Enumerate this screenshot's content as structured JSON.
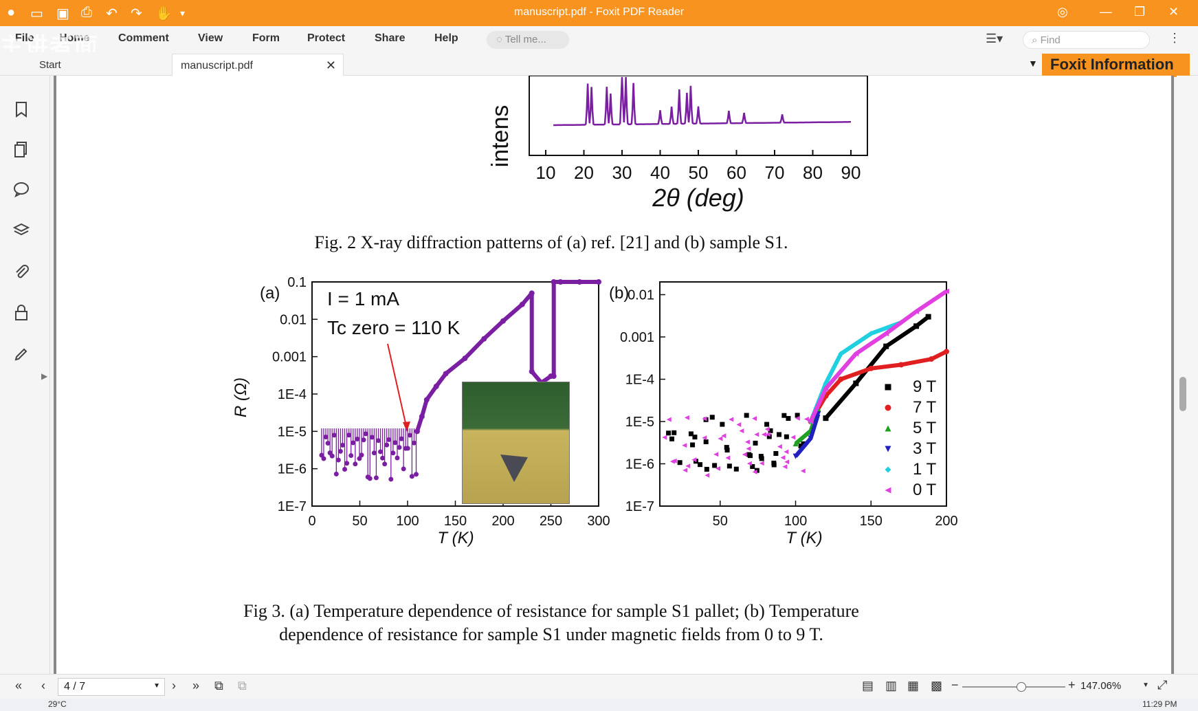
{
  "window": {
    "title": "manuscript.pdf - Foxit PDF Reader",
    "accent": "#f7931e"
  },
  "menu": {
    "items": [
      "File",
      "Home",
      "Comment",
      "View",
      "Form",
      "Protect",
      "Share",
      "Help"
    ],
    "tell_me_placeholder": "Tell me...",
    "find_placeholder": "Find"
  },
  "tabs": {
    "start": "Start",
    "document": "manuscript.pdf",
    "info": "Foxit Information"
  },
  "status": {
    "page": "4 / 7",
    "zoom": "147.06%"
  },
  "taskbar": {
    "temp": "29°C",
    "time": "11:29 PM"
  },
  "watermark": "主讲者面",
  "fig2": {
    "ylabel": "intens",
    "xticks": [
      "10",
      "20",
      "30",
      "40",
      "50",
      "60",
      "70",
      "80",
      "90"
    ],
    "xlabel": "2θ (deg)",
    "caption": "Fig. 2 X-ray diffraction patterns of (a) ref. [21] and (b) sample S1."
  },
  "fig3": {
    "caption_line1": "Fig 3. (a) Temperature dependence of resistance for sample S1 pallet; (b) Temperature",
    "caption_line2": "dependence of resistance for sample S1 under magnetic fields from 0 to 9 T."
  },
  "chart_data": [
    {
      "type": "line",
      "panel": "(a)",
      "title": "",
      "annotation_current": "I = 1 mA",
      "annotation_tc": "Tc zero = 110 K",
      "xlabel": "T (K)",
      "ylabel": "R (Ω)",
      "xlim": [
        0,
        300
      ],
      "yscale": "log",
      "ylim": [
        1e-07,
        0.1
      ],
      "xticks": [
        "0",
        "50",
        "100",
        "150",
        "200",
        "250",
        "300"
      ],
      "yticks": [
        "0.1",
        "0.01",
        "0.001",
        "1E-4",
        "1E-5",
        "1E-6",
        "1E-7"
      ],
      "series": [
        {
          "name": "R(T)",
          "color": "#7b1fa2",
          "x": [
            110,
            115,
            120,
            130,
            140,
            160,
            180,
            200,
            220,
            230,
            230,
            240,
            250,
            253,
            253,
            260,
            280,
            300
          ],
          "y": [
            1e-05,
            2.5e-05,
            7e-05,
            0.00016,
            0.00035,
            0.0009,
            0.003,
            0.009,
            0.025,
            0.05,
            0.0004,
            0.0002,
            0.0003,
            0.0003,
            0.15,
            0.18,
            0.18,
            0.18
          ]
        }
      ]
    },
    {
      "type": "scatter",
      "panel": "(b)",
      "xlabel": "T (K)",
      "ylabel": "",
      "xlim": [
        10,
        200
      ],
      "yscale": "log",
      "ylim": [
        1e-07,
        0.02
      ],
      "xticks": [
        "50",
        "100",
        "150",
        "200"
      ],
      "yticks": [
        "0.01",
        "0.001",
        "1E-4",
        "1E-5",
        "1E-6",
        "1E-7"
      ],
      "legend_position": "right",
      "series": [
        {
          "name": "9 T",
          "color": "#000000",
          "marker": "square",
          "x": [
            120,
            140,
            160,
            180,
            188
          ],
          "y": [
            1.2e-05,
            8e-05,
            0.0006,
            0.0018,
            0.003
          ]
        },
        {
          "name": "7 T",
          "color": "#e02020",
          "marker": "circle",
          "x": [
            110,
            120,
            130,
            150,
            170,
            190,
            200
          ],
          "y": [
            1e-05,
            4e-05,
            0.0001,
            0.00018,
            0.00022,
            0.0003,
            0.00045
          ]
        },
        {
          "name": "5 T",
          "color": "#20a020",
          "marker": "triangle-up",
          "x": [
            100,
            110,
            115
          ],
          "y": [
            3e-06,
            6e-06,
            2e-05
          ]
        },
        {
          "name": "3 T",
          "color": "#2020c0",
          "marker": "triangle-down",
          "x": [
            100,
            110,
            115
          ],
          "y": [
            1.5e-06,
            4e-06,
            1.5e-05
          ]
        },
        {
          "name": "1 T",
          "color": "#20d0e0",
          "marker": "diamond",
          "x": [
            110,
            120,
            130,
            150,
            170
          ],
          "y": [
            1e-05,
            8e-05,
            0.0004,
            0.0012,
            0.0022
          ]
        },
        {
          "name": "0 T",
          "color": "#e040e0",
          "marker": "triangle-left",
          "x": [
            110,
            120,
            140,
            160,
            180,
            200
          ],
          "y": [
            1e-05,
            6e-05,
            0.0004,
            0.0012,
            0.004,
            0.012
          ]
        }
      ]
    }
  ]
}
